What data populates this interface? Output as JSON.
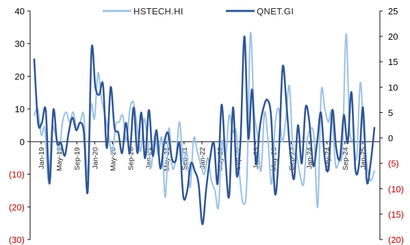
{
  "chart_data": {
    "type": "line",
    "series": [
      {
        "name": "HSTECH.HI",
        "axis": "left",
        "color": "#9dc3e6",
        "values": [
          8,
          10,
          2,
          4,
          -12,
          4,
          2,
          -3,
          6,
          9,
          6,
          9,
          4,
          6,
          8,
          -11,
          11,
          7,
          21,
          13,
          8,
          2,
          -4,
          5,
          6,
          8,
          0,
          10,
          12,
          5,
          -3,
          7,
          0,
          -8,
          2,
          -4,
          1,
          -17,
          4,
          -8,
          -5,
          6,
          -6,
          -3,
          -14,
          1,
          -3,
          -7,
          -10,
          -5,
          -12,
          -15,
          -20,
          0,
          -5,
          8,
          3,
          3,
          -11,
          -19,
          -12,
          33,
          10,
          2,
          -9,
          9,
          0,
          -13,
          5,
          10,
          0,
          7,
          17,
          -2,
          -4,
          -10,
          -13,
          0,
          4,
          1,
          -20,
          15,
          10,
          6,
          9,
          -7,
          -6,
          -2,
          33,
          4,
          0,
          -5,
          18,
          3,
          -8,
          -12,
          -9
        ]
      },
      {
        "name": "QNET.GI",
        "axis": "right",
        "color": "#2f5597",
        "values": [
          15.5,
          3,
          3,
          5.5,
          -9,
          5.5,
          -1,
          -1,
          -3.5,
          1,
          4,
          1.5,
          3,
          1,
          -10.5,
          17.5,
          10,
          8.5,
          10.5,
          -2,
          10,
          2,
          1,
          -3,
          3,
          -3,
          6,
          -3,
          5,
          -4,
          5.5,
          -3.5,
          1.5,
          -6,
          -1,
          1,
          -4,
          -4.5,
          -1,
          -11.5,
          -10.5,
          -5,
          -6.5,
          -9,
          -17,
          -10,
          -4,
          -1,
          -9,
          6.5,
          -4,
          -11.5,
          6,
          -7.5,
          0,
          20,
          0,
          9.5,
          -5,
          2,
          6,
          7.5,
          4,
          -11,
          -3,
          14,
          6.5,
          -3,
          -8,
          2.5,
          -5,
          6,
          3,
          -5.5,
          -1,
          5,
          -4,
          -6,
          5.5,
          -2,
          -4,
          4.5,
          -1,
          9,
          -6,
          -5,
          6,
          -8.5,
          -5,
          2
        ]
      }
    ],
    "x_tick_labels": [
      "Jan-19",
      "May-19",
      "Sep-19",
      "Jan-20",
      "May-20",
      "Sep-20",
      "Jan-21",
      "May-21",
      "Sep-21",
      "Jan-22",
      "May-22",
      "Sep-22",
      "Jan-23",
      "May-23",
      "Sep-23",
      "Jan-24",
      "May-24",
      "Sep-24",
      "Jan-25"
    ],
    "y_left": {
      "range": [
        -30,
        40
      ],
      "tick_values": [
        40,
        30,
        20,
        10,
        0,
        -10,
        -20,
        -30
      ],
      "tick_labels": [
        "40",
        "30",
        "20",
        "10",
        "0",
        "(10)",
        "(20)",
        "(30)"
      ]
    },
    "y_right": {
      "range": [
        -20,
        25
      ],
      "tick_values": [
        25,
        20,
        15,
        10,
        5,
        0,
        -5,
        -10,
        -15,
        -20
      ],
      "tick_labels": [
        "25",
        "20",
        "15",
        "10",
        "5",
        "0",
        "(5)",
        "(10)",
        "(15)",
        "(20)"
      ]
    },
    "negative_label_color": "#c00000",
    "positive_label_color": "#000000",
    "grid": false,
    "legend_position": "top"
  }
}
